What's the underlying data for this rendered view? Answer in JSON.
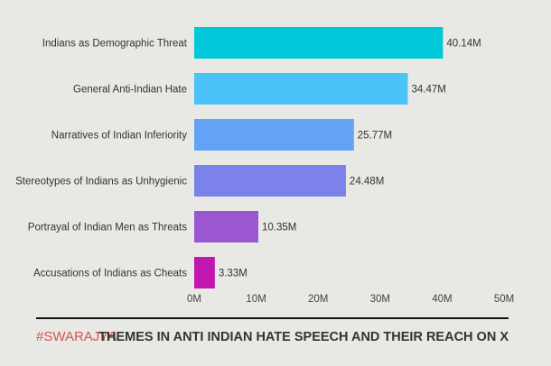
{
  "chart_data": {
    "type": "bar",
    "orientation": "horizontal",
    "title": "THEMES IN ANTI INDIAN HATE SPEECH AND THEIR REACH ON X",
    "categories": [
      "Indians as Demographic Threat",
      "General Anti-Indian Hate",
      "Narratives of Indian Inferiority",
      "Stereotypes of Indians as Unhygienic",
      "Portrayal of Indian Men as Threats",
      "Accusations of Indians as Cheats"
    ],
    "values": [
      40.14,
      34.47,
      25.77,
      24.48,
      10.35,
      3.33
    ],
    "value_labels": [
      "40.14M",
      "34.47M",
      "25.77M",
      "24.48M",
      "10.35M",
      "3.33M"
    ],
    "unit": "M",
    "xlim": [
      0,
      50
    ],
    "xticks": [
      "0M",
      "10M",
      "20M",
      "30M",
      "40M",
      "50M"
    ],
    "grid": false,
    "colors": [
      "#00c8d9",
      "#4bc3f8",
      "#62a3f5",
      "#7b83ea",
      "#9b57d1",
      "#c216b0"
    ]
  },
  "footer": {
    "brand": "#SWARAJYA",
    "brand_color": "#d9534f"
  }
}
